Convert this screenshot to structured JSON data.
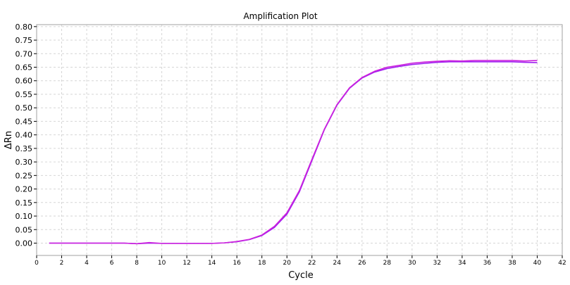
{
  "chart_data": {
    "type": "line",
    "title": "Amplification Plot",
    "xlabel": "Cycle",
    "ylabel": "ΔRn",
    "xlim": [
      0,
      42
    ],
    "ylim": [
      -0.05,
      0.82
    ],
    "xticks": [
      0,
      2,
      4,
      6,
      8,
      10,
      12,
      14,
      16,
      18,
      20,
      22,
      24,
      26,
      28,
      30,
      32,
      34,
      36,
      38,
      40,
      42
    ],
    "yticks": [
      "0.00",
      "0.05",
      "0.10",
      "0.15",
      "0.20",
      "0.25",
      "0.30",
      "0.35",
      "0.40",
      "0.45",
      "0.50",
      "0.55",
      "0.60",
      "0.65",
      "0.70",
      "0.75",
      "0.80"
    ],
    "grid": true,
    "legend": "none",
    "series": [
      {
        "color": "#a020f0",
        "x": [
          1,
          2,
          3,
          4,
          5,
          6,
          7,
          8,
          9,
          10,
          11,
          12,
          13,
          14,
          15,
          16,
          17,
          18,
          19,
          20,
          21,
          22,
          23,
          24,
          25,
          26,
          27,
          28,
          29,
          30,
          31,
          32,
          33,
          34,
          35,
          36,
          37,
          38,
          39,
          40
        ],
        "values": [
          0.0,
          0.0,
          0.0,
          0.0,
          0.0,
          0.0,
          0.0,
          -0.002,
          0.0,
          -0.001,
          -0.001,
          -0.001,
          -0.001,
          -0.001,
          0.001,
          0.005,
          0.013,
          0.028,
          0.058,
          0.107,
          0.19,
          0.305,
          0.42,
          0.51,
          0.572,
          0.61,
          0.632,
          0.645,
          0.653,
          0.66,
          0.664,
          0.668,
          0.67,
          0.67,
          0.67,
          0.67,
          0.67,
          0.67,
          0.668,
          0.667
        ]
      },
      {
        "color": "#cc22dd",
        "x": [
          1,
          2,
          3,
          4,
          5,
          6,
          7,
          8,
          9,
          10,
          11,
          12,
          13,
          14,
          15,
          16,
          17,
          18,
          19,
          20,
          21,
          22,
          23,
          24,
          25,
          26,
          27,
          28,
          29,
          30,
          31,
          32,
          33,
          34,
          35,
          36,
          37,
          38,
          39,
          40
        ],
        "values": [
          0.0,
          0.0,
          0.0,
          0.0,
          0.0,
          0.0,
          0.0,
          -0.002,
          0.002,
          -0.001,
          -0.001,
          -0.001,
          -0.001,
          -0.001,
          0.001,
          0.006,
          0.014,
          0.03,
          0.062,
          0.112,
          0.195,
          0.31,
          0.422,
          0.512,
          0.574,
          0.612,
          0.635,
          0.65,
          0.657,
          0.665,
          0.669,
          0.672,
          0.674,
          0.673,
          0.675,
          0.675,
          0.675,
          0.675,
          0.673,
          0.675
        ]
      }
    ]
  }
}
